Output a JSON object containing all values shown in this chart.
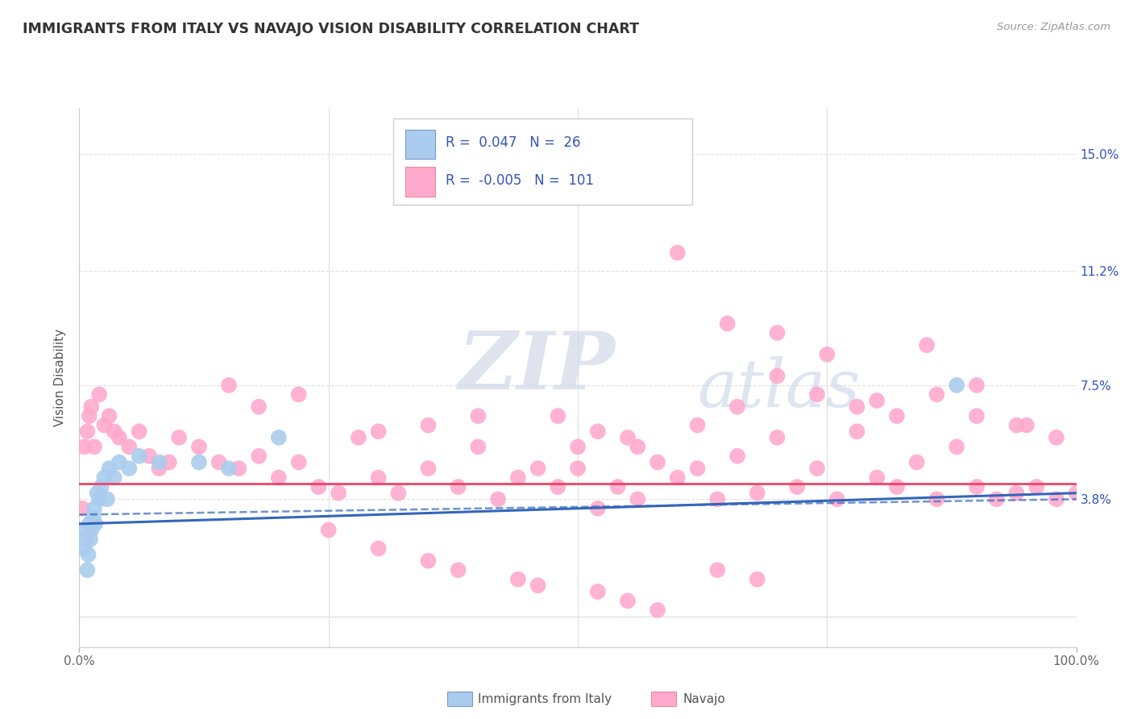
{
  "title": "IMMIGRANTS FROM ITALY VS NAVAJO VISION DISABILITY CORRELATION CHART",
  "source": "Source: ZipAtlas.com",
  "ylabel": "Vision Disability",
  "xlim": [
    0.0,
    100.0
  ],
  "ylim": [
    -0.01,
    0.165
  ],
  "yticks": [
    0.0,
    0.038,
    0.075,
    0.112,
    0.15
  ],
  "ytick_labels": [
    "",
    "3.8%",
    "7.5%",
    "11.2%",
    "15.0%"
  ],
  "xtick_labels": [
    "0.0%",
    "100.0%"
  ],
  "legend_labels": [
    "Immigrants from Italy",
    "Navajo"
  ],
  "blue_color": "#aaccee",
  "blue_edge": "#7799cc",
  "pink_color": "#ffaacc",
  "pink_edge": "#ee8899",
  "blue_line_color": "#3366bb",
  "pink_line_color": "#ee4466",
  "R_blue": 0.047,
  "N_blue": 26,
  "R_pink": -0.005,
  "N_pink": 101,
  "stat_text_color": "#3355bb",
  "watermark_zip": "ZIP",
  "watermark_atlas": "atlas",
  "background_color": "#ffffff",
  "grid_color": "#e0e0e0",
  "blue_scatter_x": [
    0.3,
    0.5,
    0.6,
    0.8,
    0.9,
    1.0,
    1.1,
    1.2,
    1.4,
    1.5,
    1.6,
    1.8,
    2.0,
    2.2,
    2.5,
    2.8,
    3.0,
    3.5,
    4.0,
    5.0,
    6.0,
    8.0,
    12.0,
    15.0,
    20.0,
    88.0
  ],
  "blue_scatter_y": [
    0.028,
    0.022,
    0.025,
    0.015,
    0.02,
    0.03,
    0.025,
    0.028,
    0.032,
    0.035,
    0.03,
    0.04,
    0.038,
    0.042,
    0.045,
    0.038,
    0.048,
    0.045,
    0.05,
    0.048,
    0.052,
    0.05,
    0.05,
    0.048,
    0.058,
    0.075
  ],
  "pink_scatter_x": [
    0.3,
    0.5,
    0.8,
    1.0,
    1.2,
    1.5,
    2.0,
    2.5,
    3.0,
    3.5,
    4.0,
    5.0,
    6.0,
    7.0,
    8.0,
    9.0,
    10.0,
    12.0,
    14.0,
    16.0,
    18.0,
    20.0,
    22.0,
    24.0,
    26.0,
    28.0,
    30.0,
    32.0,
    35.0,
    38.0,
    40.0,
    42.0,
    44.0,
    46.0,
    48.0,
    50.0,
    52.0,
    54.0,
    56.0,
    58.0,
    60.0,
    62.0,
    64.0,
    66.0,
    68.0,
    70.0,
    72.0,
    74.0,
    76.0,
    78.0,
    80.0,
    82.0,
    84.0,
    86.0,
    88.0,
    90.0,
    92.0,
    94.0,
    96.0,
    98.0,
    100.0,
    15.0,
    18.0,
    22.0,
    30.0,
    35.0,
    40.0,
    50.0,
    55.0,
    60.0,
    65.0,
    70.0,
    75.0,
    80.0,
    85.0,
    90.0,
    95.0,
    48.0,
    52.0,
    56.0,
    62.0,
    66.0,
    70.0,
    74.0,
    78.0,
    82.0,
    86.0,
    90.0,
    94.0,
    98.0,
    25.0,
    30.0,
    35.0,
    38.0,
    44.0,
    46.0,
    52.0,
    55.0,
    58.0,
    64.0,
    68.0
  ],
  "pink_scatter_y": [
    0.035,
    0.055,
    0.06,
    0.065,
    0.068,
    0.055,
    0.072,
    0.062,
    0.065,
    0.06,
    0.058,
    0.055,
    0.06,
    0.052,
    0.048,
    0.05,
    0.058,
    0.055,
    0.05,
    0.048,
    0.052,
    0.045,
    0.05,
    0.042,
    0.04,
    0.058,
    0.045,
    0.04,
    0.048,
    0.042,
    0.055,
    0.038,
    0.045,
    0.048,
    0.042,
    0.055,
    0.035,
    0.042,
    0.038,
    0.05,
    0.045,
    0.048,
    0.038,
    0.052,
    0.04,
    0.058,
    0.042,
    0.048,
    0.038,
    0.06,
    0.045,
    0.042,
    0.05,
    0.038,
    0.055,
    0.042,
    0.038,
    0.04,
    0.042,
    0.038,
    0.04,
    0.075,
    0.068,
    0.072,
    0.06,
    0.062,
    0.065,
    0.048,
    0.058,
    0.118,
    0.095,
    0.092,
    0.085,
    0.07,
    0.088,
    0.075,
    0.062,
    0.065,
    0.06,
    0.055,
    0.062,
    0.068,
    0.078,
    0.072,
    0.068,
    0.065,
    0.072,
    0.065,
    0.062,
    0.058,
    0.028,
    0.022,
    0.018,
    0.015,
    0.012,
    0.01,
    0.008,
    0.005,
    0.002,
    0.015,
    0.012
  ]
}
